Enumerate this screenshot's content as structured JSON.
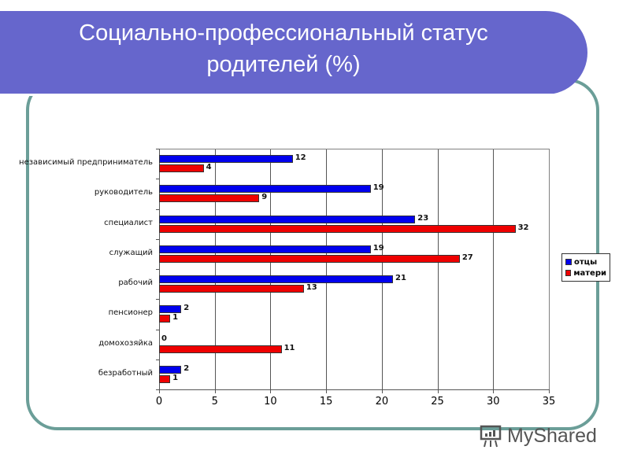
{
  "slide": {
    "title_line1": "Социально-профессиональный статус",
    "title_line2": "родителей (%)",
    "colors": {
      "title_band": "#6666cc",
      "frame": "#6b9e98",
      "fathers": "#0000ee",
      "mothers": "#ee0000"
    }
  },
  "legend": {
    "fathers": "отцы",
    "mothers": "матери"
  },
  "x_ticks": [
    "0",
    "5",
    "10",
    "15",
    "20",
    "25",
    "30",
    "35"
  ],
  "watermark": {
    "text": "MyShared",
    "icon": "presentation-board-icon"
  },
  "chart_data": {
    "type": "bar",
    "orientation": "horizontal",
    "title": "Социально-профессиональный статус родителей (%)",
    "xlabel": "",
    "ylabel": "",
    "xlim": [
      0,
      35
    ],
    "x_ticks": [
      0,
      5,
      10,
      15,
      20,
      25,
      30,
      35
    ],
    "grid": "vertical",
    "legend_position": "right",
    "categories": [
      "независимый предприниматель",
      "руководитель",
      "специалист",
      "служащий",
      "рабочий",
      "пенсионер",
      "домохозяйка",
      "безработный"
    ],
    "series": [
      {
        "name": "отцы",
        "color": "#0000ee",
        "values": [
          12,
          19,
          23,
          19,
          21,
          2,
          0,
          2
        ]
      },
      {
        "name": "матери",
        "color": "#ee0000",
        "values": [
          4,
          9,
          32,
          27,
          13,
          1,
          11,
          1
        ]
      }
    ],
    "data_labels": true
  }
}
